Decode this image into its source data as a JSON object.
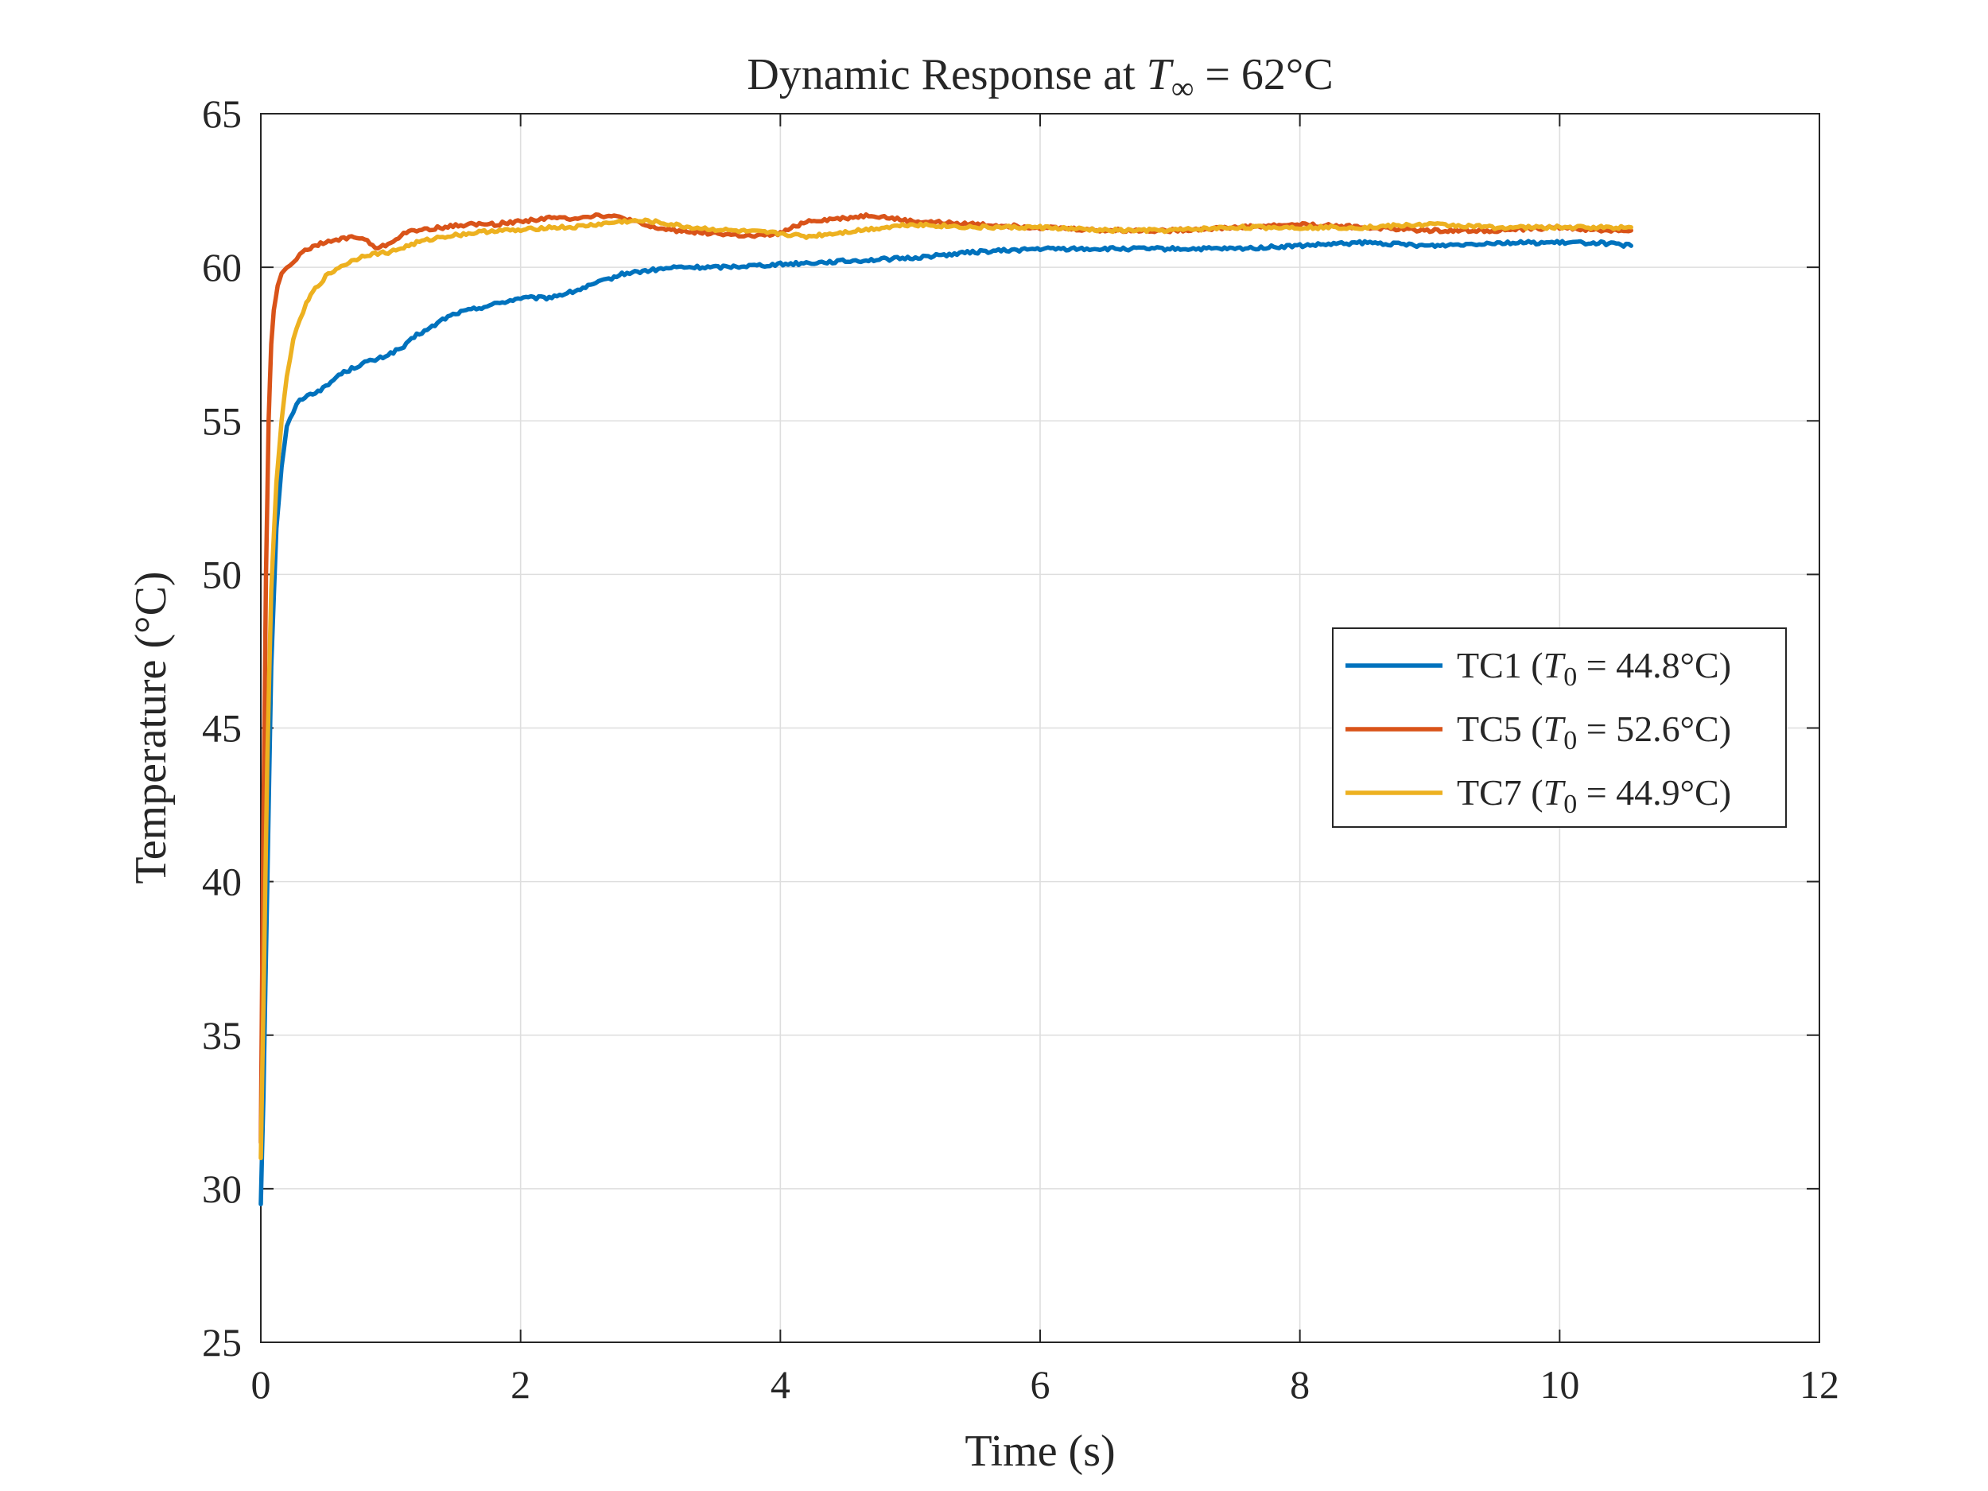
{
  "chart_data": {
    "type": "line",
    "title": {
      "prefix": "Dynamic Response at ",
      "symbol": "T",
      "subscript": "∞",
      "suffix": " = 62°C"
    },
    "xlabel": "Time (s)",
    "ylabel": "Temperature (°C)",
    "xlim": [
      0,
      12
    ],
    "ylim": [
      25,
      65
    ],
    "xticks": [
      "0",
      "2",
      "4",
      "6",
      "8",
      "10",
      "12"
    ],
    "yticks": [
      "25",
      "30",
      "35",
      "40",
      "45",
      "50",
      "55",
      "60",
      "65"
    ],
    "grid": true,
    "legend_position": "right",
    "series": [
      {
        "name": "TC1",
        "legend": {
          "prefix": "TC1 (",
          "symbol": "T",
          "subscript": "0",
          "suffix": " = 44.8°C)"
        },
        "color": "#0072BD",
        "x": [
          0,
          0.02,
          0.05,
          0.08,
          0.12,
          0.16,
          0.2,
          0.25,
          0.3,
          0.4,
          0.5,
          0.6,
          0.7,
          0.8,
          0.9,
          1.0,
          1.1,
          1.2,
          1.3,
          1.4,
          1.5,
          1.6,
          1.8,
          2.0,
          2.2,
          2.4,
          2.6,
          2.8,
          3.0,
          3.2,
          3.5,
          4.0,
          4.5,
          5.0,
          5.5,
          6.0,
          6.5,
          7.0,
          7.5,
          8.0,
          8.5,
          9.0,
          9.5,
          10.0,
          10.3,
          10.55
        ],
        "y": [
          29.5,
          33.0,
          40.0,
          47.0,
          51.5,
          53.5,
          54.8,
          55.3,
          55.7,
          55.9,
          56.1,
          56.5,
          56.7,
          56.9,
          57.0,
          57.2,
          57.4,
          57.8,
          58.0,
          58.3,
          58.5,
          58.6,
          58.8,
          59.0,
          59.0,
          59.2,
          59.5,
          59.8,
          59.9,
          60.0,
          60.0,
          60.1,
          60.2,
          60.3,
          60.5,
          60.6,
          60.6,
          60.6,
          60.6,
          60.7,
          60.8,
          60.7,
          60.8,
          60.8,
          60.8,
          60.7
        ]
      },
      {
        "name": "TC5",
        "legend": {
          "prefix": "TC5 (",
          "symbol": "T",
          "subscript": "0",
          "suffix": " = 52.6°C)"
        },
        "color": "#D95319",
        "x": [
          0,
          0.02,
          0.04,
          0.06,
          0.08,
          0.1,
          0.13,
          0.16,
          0.2,
          0.25,
          0.3,
          0.4,
          0.5,
          0.6,
          0.7,
          0.8,
          0.9,
          1.0,
          1.1,
          1.2,
          1.4,
          1.6,
          1.8,
          2.0,
          2.2,
          2.4,
          2.6,
          2.8,
          3.0,
          3.2,
          3.5,
          3.8,
          4.0,
          4.2,
          4.5,
          4.7,
          5.0,
          5.5,
          6.0,
          6.5,
          7.0,
          7.5,
          8.0,
          8.5,
          9.0,
          9.5,
          10.0,
          10.3,
          10.55
        ],
        "y": [
          31.5,
          42.0,
          50.0,
          55.0,
          57.5,
          58.6,
          59.4,
          59.8,
          60.0,
          60.2,
          60.4,
          60.7,
          60.8,
          60.9,
          61.0,
          60.9,
          60.6,
          60.8,
          61.1,
          61.2,
          61.3,
          61.4,
          61.4,
          61.5,
          61.6,
          61.6,
          61.7,
          61.6,
          61.3,
          61.2,
          61.1,
          61.0,
          61.1,
          61.5,
          61.6,
          61.7,
          61.5,
          61.4,
          61.3,
          61.2,
          61.2,
          61.3,
          61.4,
          61.3,
          61.2,
          61.2,
          61.3,
          61.2,
          61.2
        ]
      },
      {
        "name": "TC7",
        "legend": {
          "prefix": "TC7 (",
          "symbol": "T",
          "subscript": "0",
          "suffix": " = 44.9°C)"
        },
        "color": "#EDB120",
        "x": [
          0,
          0.02,
          0.05,
          0.08,
          0.12,
          0.16,
          0.2,
          0.25,
          0.3,
          0.35,
          0.4,
          0.5,
          0.6,
          0.7,
          0.8,
          1.0,
          1.2,
          1.4,
          1.6,
          1.8,
          2.0,
          2.2,
          2.4,
          2.6,
          2.8,
          3.0,
          3.3,
          3.6,
          4.0,
          4.2,
          4.4,
          4.6,
          4.8,
          5.0,
          5.5,
          6.0,
          6.5,
          7.0,
          7.5,
          8.0,
          8.5,
          9.0,
          9.5,
          10.0,
          10.3,
          10.55
        ],
        "y": [
          31.0,
          36.0,
          44.0,
          49.5,
          53.0,
          55.0,
          56.5,
          57.6,
          58.3,
          58.8,
          59.2,
          59.7,
          60.0,
          60.2,
          60.4,
          60.5,
          60.8,
          61.0,
          61.1,
          61.2,
          61.2,
          61.3,
          61.3,
          61.4,
          61.5,
          61.5,
          61.3,
          61.2,
          61.1,
          61.0,
          61.1,
          61.2,
          61.3,
          61.4,
          61.3,
          61.3,
          61.2,
          61.2,
          61.3,
          61.3,
          61.3,
          61.4,
          61.3,
          61.3,
          61.3,
          61.3
        ]
      }
    ]
  }
}
